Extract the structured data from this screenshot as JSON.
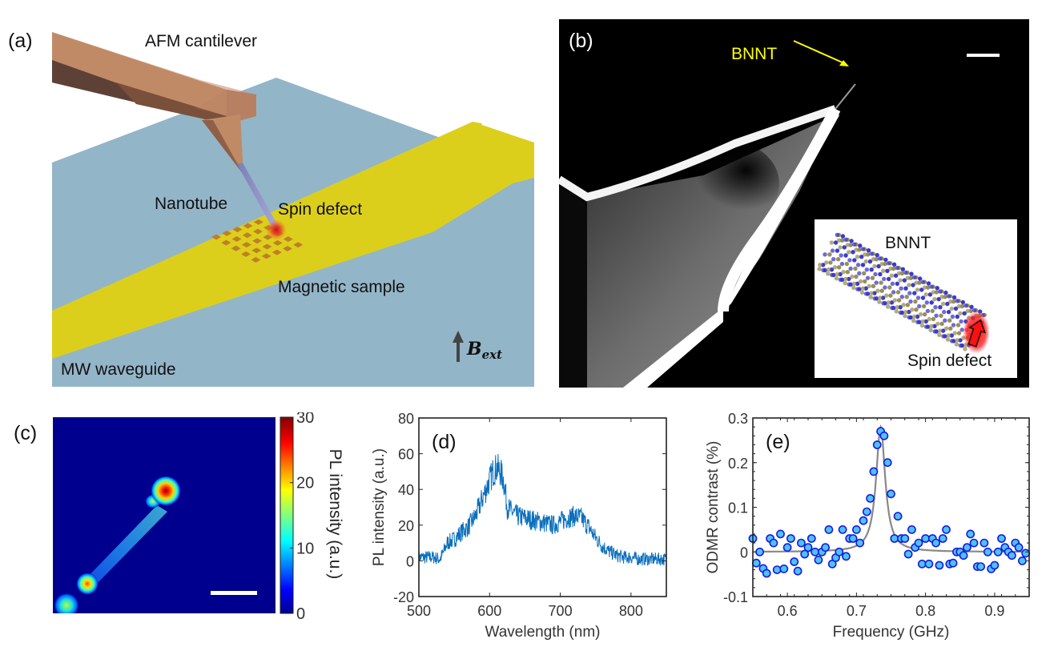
{
  "panels": {
    "a": {
      "label": "(a)",
      "annotations": {
        "cantilever": "AFM cantilever",
        "nanotube": "Nanotube",
        "spin_defect": "Spin defect",
        "sample": "Magnetic sample",
        "waveguide": "MW waveguide",
        "field_main": "B",
        "field_sub": "ext"
      },
      "colors": {
        "substrate": "#93b5c8",
        "waveguide": "#dccf1c",
        "cantilever": "#c08a66",
        "sample": "#c98a2a",
        "defect": "#e0302a"
      }
    },
    "b": {
      "label": "(b)",
      "arrow_label": "BNNT",
      "arrow_color": "#ffff00",
      "inset": {
        "title": "BNNT",
        "caption": "Spin defect"
      },
      "colors": {
        "boron": "#9a8f55",
        "nitrogen": "#3a3ad0",
        "defect": "#ff1010"
      }
    },
    "c": {
      "label": "(c)",
      "colorbar": {
        "title": "PL intensity (a.u.)",
        "ticks": [
          "0",
          "10",
          "20",
          "30"
        ],
        "range": [
          0,
          30
        ]
      }
    }
  },
  "chart_data": [
    {
      "id": "d",
      "type": "line",
      "label": "(d)",
      "title": "",
      "xlabel": "Wavelength (nm)",
      "ylabel": "PL intensity (a.u.)",
      "xlim": [
        500,
        850
      ],
      "ylim": [
        -20,
        80
      ],
      "xticks": [
        500,
        600,
        700,
        800
      ],
      "yticks": [
        -20,
        0,
        20,
        40,
        60,
        80
      ],
      "series": [
        {
          "name": "PL spectrum",
          "color": "#0b6fbd",
          "envelope_x": [
            500,
            510,
            520,
            530,
            535,
            540,
            550,
            560,
            570,
            580,
            590,
            600,
            605,
            610,
            615,
            620,
            625,
            630,
            640,
            650,
            660,
            670,
            680,
            690,
            700,
            710,
            720,
            730,
            740,
            750,
            760,
            770,
            780,
            790,
            800,
            810,
            820,
            830,
            840,
            850
          ],
          "envelope_y": [
            2,
            2,
            2,
            1,
            5,
            10,
            12,
            16,
            19,
            25,
            35,
            45,
            50,
            52,
            50,
            45,
            30,
            28,
            25,
            24,
            23,
            22,
            21,
            20,
            22,
            24,
            25,
            24,
            19,
            13,
            8,
            5,
            3,
            2,
            2,
            1,
            1,
            1,
            1,
            1
          ],
          "noise_amplitude": 6
        }
      ]
    },
    {
      "id": "e",
      "type": "scatter",
      "label": "(e)",
      "title": "",
      "xlabel": "Frequency (GHz)",
      "ylabel": "ODMR contrast (%)",
      "xlim": [
        0.55,
        0.95
      ],
      "ylim": [
        -0.1,
        0.3
      ],
      "xticks": [
        0.6,
        0.7,
        0.8,
        0.9
      ],
      "yticks": [
        -0.1,
        0,
        0.1,
        0.2,
        0.3
      ],
      "ytick_labels": [
        "-0.1",
        "0",
        "0.1",
        "0.2",
        "0.3"
      ],
      "series": [
        {
          "name": "data",
          "marker_fill": "#4cc3f5",
          "marker_edge": "#1a1ae0",
          "x": [
            0.55,
            0.555,
            0.56,
            0.565,
            0.57,
            0.575,
            0.58,
            0.585,
            0.59,
            0.595,
            0.6,
            0.605,
            0.61,
            0.615,
            0.62,
            0.625,
            0.63,
            0.635,
            0.64,
            0.645,
            0.65,
            0.655,
            0.66,
            0.665,
            0.67,
            0.675,
            0.68,
            0.685,
            0.69,
            0.695,
            0.7,
            0.705,
            0.71,
            0.715,
            0.72,
            0.725,
            0.73,
            0.735,
            0.74,
            0.745,
            0.75,
            0.755,
            0.76,
            0.765,
            0.77,
            0.775,
            0.78,
            0.785,
            0.79,
            0.795,
            0.8,
            0.805,
            0.81,
            0.815,
            0.82,
            0.825,
            0.83,
            0.835,
            0.84,
            0.845,
            0.85,
            0.855,
            0.86,
            0.865,
            0.87,
            0.875,
            0.88,
            0.885,
            0.89,
            0.895,
            0.9,
            0.905,
            0.91,
            0.915,
            0.92,
            0.925,
            0.93,
            0.935,
            0.94,
            0.945
          ],
          "y": [
            0.03,
            -0.025,
            0,
            -0.037,
            -0.048,
            0.03,
            0.02,
            -0.04,
            0.04,
            -0.038,
            0.01,
            0.03,
            -0.022,
            -0.043,
            0.02,
            -0.005,
            0.01,
            0.03,
            0,
            -0.018,
            0,
            0.01,
            0.05,
            -0.027,
            -0.013,
            0,
            0.05,
            -0.01,
            0.03,
            0.03,
            0.05,
            0.02,
            0.07,
            0.09,
            0.12,
            0.18,
            0.24,
            0.27,
            0.26,
            0.2,
            0.13,
            0.03,
            0.08,
            0.03,
            0.03,
            -0.005,
            0.05,
            0.01,
            0.02,
            -0.027,
            0.03,
            -0.027,
            0.03,
            0.02,
            -0.03,
            0.03,
            0.05,
            -0.027,
            -0.025,
            0,
            0,
            -0.008,
            0.01,
            0.04,
            0.02,
            -0.033,
            -0.033,
            0.02,
            0,
            -0.038,
            -0.03,
            0,
            0.03,
            0.01,
            0,
            -0.008,
            0.02,
            0.01,
            -0.02,
            -0.003
          ]
        },
        {
          "name": "Lorentzian fit",
          "color": "#888888",
          "center": 0.735,
          "amplitude": 0.28,
          "fwhm": 0.016,
          "offset": 0.0
        }
      ]
    }
  ]
}
